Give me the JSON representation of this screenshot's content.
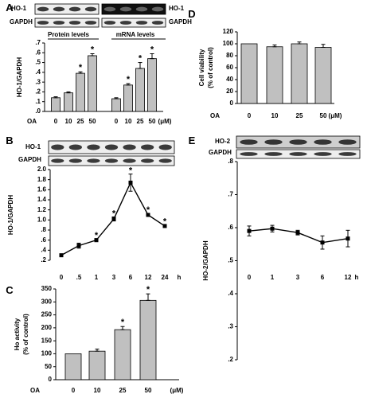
{
  "colors": {
    "bar_fill": "#c0c0c0",
    "ink": "#000000",
    "blot_light": "#eeeeee",
    "band": "#1a1a1a"
  },
  "panels": {
    "A": {
      "letter": "A",
      "blot_labels": {
        "ho1": "HO-1",
        "gapdh": "GAPDH"
      },
      "group_labels": [
        "Protein levels",
        "mRNA levels"
      ]
    },
    "B": {
      "letter": "B",
      "blot_labels": {
        "ho1": "HO-1",
        "gapdh": "GAPDH"
      }
    },
    "C": {
      "letter": "C"
    },
    "D": {
      "letter": "D"
    },
    "E": {
      "letter": "E",
      "blot_labels": {
        "ho2": "HO-2",
        "gapdh": "GAPDH"
      }
    }
  },
  "chart_data": [
    {
      "panel": "A",
      "type": "bar",
      "ylabel": "HO-1/GAPDH",
      "ylim": [
        0,
        0.7
      ],
      "yticks": [
        ".0",
        ".1",
        ".2",
        ".3",
        ".4",
        ".5",
        ".6",
        ".7"
      ],
      "xaxis_title": "OA",
      "unit": "(μM)",
      "groups": [
        {
          "name": "Protein levels",
          "categories": [
            "0",
            "10",
            "25",
            "50"
          ],
          "values": [
            0.14,
            0.19,
            0.39,
            0.57
          ],
          "errors": [
            0.01,
            0.01,
            0.015,
            0.02
          ],
          "significant": [
            false,
            false,
            true,
            true
          ]
        },
        {
          "name": "mRNA levels",
          "categories": [
            "0",
            "10",
            "25",
            "50"
          ],
          "values": [
            0.13,
            0.27,
            0.44,
            0.54
          ],
          "errors": [
            0.01,
            0.015,
            0.06,
            0.05
          ],
          "significant": [
            false,
            true,
            true,
            true
          ]
        }
      ]
    },
    {
      "panel": "B",
      "type": "line",
      "ylabel": "HO-1/GAPDH",
      "ylim": [
        0.2,
        2.0
      ],
      "yticks": [
        ".2",
        ".4",
        ".6",
        ".8",
        "1.0",
        "1.2",
        "1.4",
        "1.6",
        "1.8",
        "2.0"
      ],
      "categories": [
        "0",
        ".5",
        "1",
        "3",
        "6",
        "12",
        "24"
      ],
      "unit": "h",
      "values": [
        0.3,
        0.49,
        0.6,
        1.02,
        1.74,
        1.1,
        0.88
      ],
      "errors": [
        0.01,
        0.05,
        0.03,
        0.04,
        0.17,
        0.03,
        0.02
      ],
      "significant": [
        false,
        false,
        true,
        true,
        true,
        true,
        true
      ]
    },
    {
      "panel": "C",
      "type": "bar",
      "ylabel": "Ho activity",
      "ylabel2": "(% of control)",
      "ylim": [
        0,
        350
      ],
      "yticks": [
        "0",
        "50",
        "100",
        "150",
        "200",
        "250",
        "300",
        "350"
      ],
      "xaxis_title": "OA",
      "categories": [
        "0",
        "10",
        "25",
        "50"
      ],
      "unit": "(μM)",
      "values": [
        100,
        110,
        193,
        306
      ],
      "errors": [
        0,
        8,
        12,
        25
      ],
      "significant": [
        false,
        false,
        true,
        true
      ]
    },
    {
      "panel": "D",
      "type": "bar",
      "ylabel": "Cell viability",
      "ylabel2": "(% of control)",
      "ylim": [
        0,
        120
      ],
      "yticks": [
        "0",
        "20",
        "40",
        "60",
        "80",
        "100",
        "120"
      ],
      "xaxis_title": "OA",
      "categories": [
        "0",
        "10",
        "25",
        "50"
      ],
      "unit": "(μM)",
      "values": [
        100,
        95,
        100,
        94
      ],
      "errors": [
        0,
        3,
        3,
        5
      ]
    },
    {
      "panel": "E",
      "type": "line",
      "ylabel": "HO-2/GAPDH",
      "ylim": [
        0.2,
        0.8
      ],
      "yticks": [
        ".2",
        ".3",
        ".4",
        ".5",
        ".6",
        ".7",
        ".8"
      ],
      "categories": [
        "0",
        "1",
        "3",
        "6",
        "12"
      ],
      "unit": "h",
      "values": [
        0.59,
        0.597,
        0.585,
        0.555,
        0.567
      ],
      "errors": [
        0.015,
        0.01,
        0.007,
        0.02,
        0.025
      ]
    }
  ]
}
